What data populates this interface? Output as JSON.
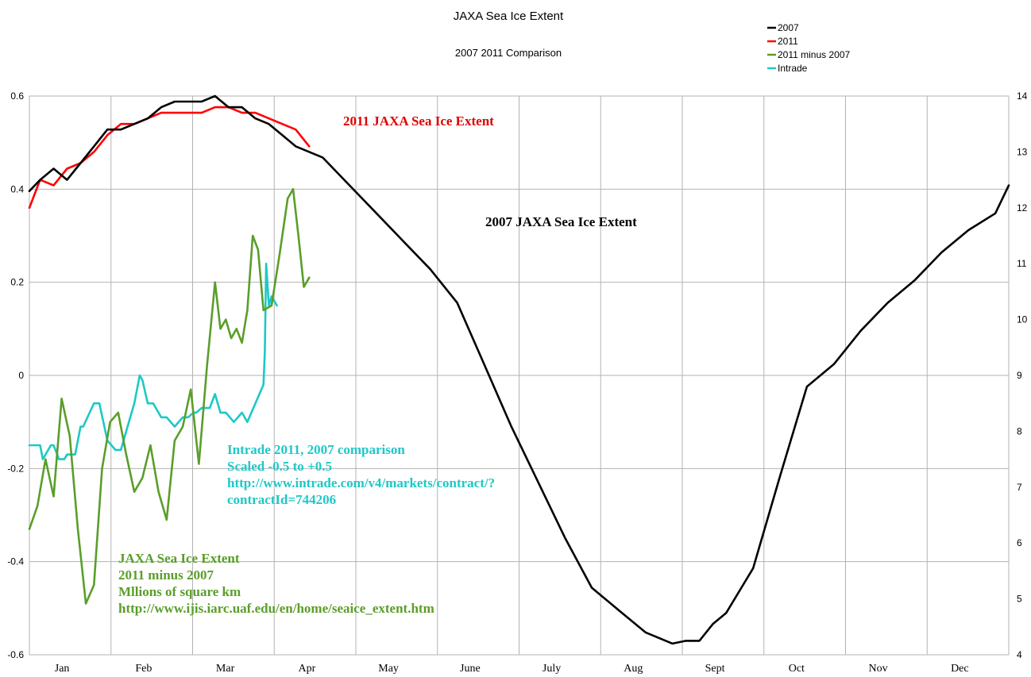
{
  "chart_data": {
    "type": "line",
    "title": "JAXA Sea Ice Extent",
    "subtitle": "2007 2011 Comparison",
    "left_axis": {
      "ylim": [
        -0.6,
        0.6
      ],
      "ticks": [
        "0.6",
        "0.4",
        "0.2",
        "0",
        "-0.2",
        "-0.4",
        "-0.6"
      ]
    },
    "right_axis": {
      "ylim": [
        4,
        14
      ],
      "ticks": [
        "14",
        "13",
        "12",
        "11",
        "10",
        "9",
        "8",
        "7",
        "6",
        "5",
        "4"
      ]
    },
    "x_categories": [
      "Jan",
      "Feb",
      "Mar",
      "Apr",
      "May",
      "June",
      "July",
      "Aug",
      "Sept",
      "Oct",
      "Nov",
      "Dec"
    ],
    "grid": true,
    "legend": {
      "position": "top-right"
    },
    "series": [
      {
        "name": "2007",
        "color": "#000000",
        "axis": "right",
        "x": [
          1,
          5,
          10,
          15,
          20,
          25,
          30,
          35,
          40,
          45,
          50,
          55,
          60,
          65,
          70,
          75,
          80,
          85,
          90,
          95,
          100,
          110,
          120,
          130,
          140,
          150,
          160,
          170,
          180,
          190,
          200,
          210,
          220,
          230,
          240,
          245,
          250,
          255,
          260,
          265,
          270,
          280,
          290,
          300,
          310,
          320,
          330,
          340,
          350,
          360,
          365
        ],
        "values": [
          12.3,
          12.5,
          12.7,
          12.5,
          12.8,
          13.1,
          13.4,
          13.4,
          13.5,
          13.6,
          13.8,
          13.9,
          13.9,
          13.9,
          14.0,
          13.8,
          13.8,
          13.6,
          13.5,
          13.3,
          13.1,
          12.9,
          12.4,
          11.9,
          11.4,
          10.9,
          10.3,
          9.2,
          8.1,
          7.1,
          6.1,
          5.2,
          4.8,
          4.4,
          4.2,
          4.25,
          4.25,
          4.55,
          4.75,
          5.15,
          5.55,
          7.2,
          8.8,
          9.2,
          9.8,
          10.3,
          10.7,
          11.2,
          11.6,
          11.9,
          12.4
        ]
      },
      {
        "name": "2011",
        "color": "#ff0000",
        "axis": "right",
        "x": [
          1,
          5,
          10,
          15,
          20,
          25,
          30,
          35,
          40,
          45,
          50,
          55,
          60,
          65,
          70,
          75,
          80,
          85,
          90,
          95,
          100,
          105
        ],
        "values": [
          12.0,
          12.5,
          12.4,
          12.7,
          12.8,
          13.0,
          13.3,
          13.5,
          13.5,
          13.6,
          13.7,
          13.7,
          13.7,
          13.7,
          13.8,
          13.8,
          13.7,
          13.7,
          13.6,
          13.5,
          13.4,
          13.1
        ]
      },
      {
        "name": "2011 minus 2007",
        "color": "#5a9e2a",
        "axis": "left",
        "x": [
          1,
          4,
          7,
          10,
          13,
          16,
          19,
          22,
          25,
          28,
          31,
          34,
          37,
          40,
          43,
          46,
          49,
          52,
          55,
          58,
          61,
          64,
          67,
          70,
          72,
          74,
          76,
          78,
          80,
          82,
          84,
          86,
          88,
          91,
          94,
          97,
          99,
          101,
          103,
          105
        ],
        "values": [
          -0.33,
          -0.28,
          -0.18,
          -0.26,
          -0.05,
          -0.13,
          -0.33,
          -0.49,
          -0.45,
          -0.2,
          -0.1,
          -0.08,
          -0.17,
          -0.25,
          -0.22,
          -0.15,
          -0.25,
          -0.31,
          -0.14,
          -0.11,
          -0.03,
          -0.19,
          0.02,
          0.2,
          0.1,
          0.12,
          0.08,
          0.1,
          0.07,
          0.14,
          0.3,
          0.27,
          0.14,
          0.15,
          0.26,
          0.38,
          0.4,
          0.3,
          0.19,
          0.21
        ]
      },
      {
        "name": "Intrade",
        "color": "#1ec8c8",
        "axis": "left",
        "x": [
          1,
          5,
          6,
          9,
          10,
          12,
          14,
          15,
          18,
          20,
          21,
          25,
          27,
          30,
          33,
          35,
          37,
          40,
          42,
          43,
          45,
          47,
          50,
          52,
          55,
          58,
          60,
          62,
          63,
          65,
          68,
          70,
          71,
          72,
          74,
          77,
          80,
          82,
          88,
          88.5,
          89,
          90,
          91,
          93
        ],
        "values": [
          -0.15,
          -0.15,
          -0.18,
          -0.15,
          -0.15,
          -0.18,
          -0.18,
          -0.17,
          -0.17,
          -0.11,
          -0.11,
          -0.06,
          -0.06,
          -0.14,
          -0.16,
          -0.16,
          -0.12,
          -0.06,
          0.0,
          -0.01,
          -0.06,
          -0.06,
          -0.09,
          -0.09,
          -0.11,
          -0.09,
          -0.09,
          -0.08,
          -0.08,
          -0.07,
          -0.07,
          -0.04,
          -0.06,
          -0.08,
          -0.08,
          -0.1,
          -0.08,
          -0.1,
          -0.02,
          0.05,
          0.24,
          0.15,
          0.17,
          0.15
        ]
      }
    ],
    "annotations": [
      {
        "lines": [
          "2011 JAXA Sea Ice Extent"
        ],
        "color": "#e00000"
      },
      {
        "lines": [
          "2007 JAXA Sea Ice Extent"
        ],
        "color": "#000000"
      },
      {
        "lines": [
          "Intrade 2011, 2007 comparison",
          "Scaled -0.5 to +0.5",
          "http://www.intrade.com/v4/markets/contract/?",
          "contractId=744206"
        ],
        "color": "#1ec8c8"
      },
      {
        "lines": [
          "JAXA Sea Ice Extent",
          "2011 minus 2007",
          "Mllions of square km",
          "http://www.ijis.iarc.uaf.edu/en/home/seaice_extent.htm"
        ],
        "color": "#5a9e2a"
      }
    ]
  }
}
